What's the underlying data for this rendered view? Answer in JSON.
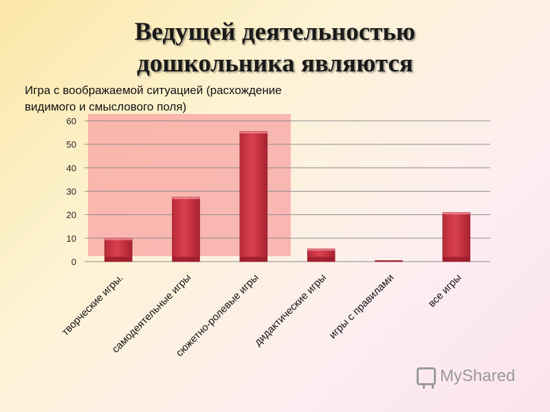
{
  "title": {
    "line1": "Ведущей деятельностью",
    "line2": "дошкольника являются"
  },
  "note": "Игра с воображаемой ситуацией (расхождение видимого и смыслового поля)",
  "watermark": {
    "text": "MyShared",
    "icon": "presentation-board-icon"
  },
  "colors": {
    "bar": "#d9404f",
    "bar_dark": "#9e1f2c",
    "highlight": "#f7a3a3",
    "grid": "#8c8c8c"
  },
  "chart_data": {
    "type": "bar",
    "categories": [
      "творческие игры.",
      "самодеятельные игры",
      "сюжетно-ролевые игры",
      "дидактические игры",
      "игры с правилами",
      "все игры"
    ],
    "values": [
      10,
      27.5,
      55.5,
      5.5,
      0.5,
      21
    ],
    "ylim": [
      0,
      60
    ],
    "yticks": [
      0,
      10,
      20,
      30,
      40,
      50,
      60
    ],
    "grid": true,
    "highlight_categories": [
      0,
      1,
      2
    ],
    "xlabel": "",
    "ylabel": ""
  }
}
